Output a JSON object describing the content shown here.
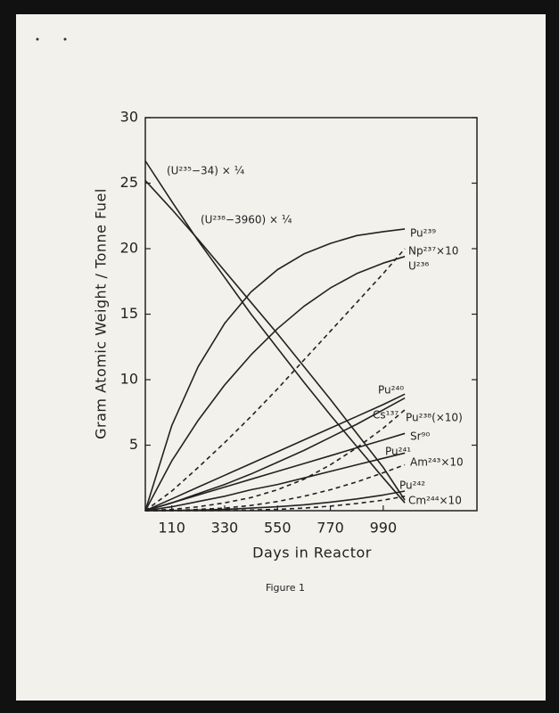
{
  "chart_data": {
    "type": "line",
    "caption": "Figure 1",
    "xlabel": "Days in Reactor",
    "ylabel": "Gram Atomic Weight / Tonne Fuel",
    "x": [
      0,
      110,
      220,
      330,
      440,
      550,
      660,
      770,
      880,
      990,
      1080
    ],
    "xlim": [
      0,
      1380
    ],
    "xticks": [
      110,
      330,
      550,
      770,
      990
    ],
    "ylim": [
      0,
      30
    ],
    "yticks": [
      5,
      10,
      15,
      20,
      25,
      30
    ],
    "grid": false,
    "series": [
      {
        "name": "(U²³⁵−34) × ¼",
        "color": "#222",
        "dash": false,
        "values": [
          26.7,
          23.6,
          20.6,
          17.8,
          15.0,
          12.4,
          9.8,
          7.3,
          4.9,
          2.5,
          0.6
        ]
      },
      {
        "name": "(U²³⁸−3960) × ¼",
        "color": "#222",
        "dash": false,
        "values": [
          25.2,
          23.0,
          20.7,
          18.3,
          15.9,
          13.5,
          11.0,
          8.5,
          5.9,
          3.3,
          0.8
        ]
      },
      {
        "name": "Pu²³⁹",
        "color": "#222",
        "dash": false,
        "values": [
          0,
          6.5,
          11.0,
          14.3,
          16.7,
          18.4,
          19.6,
          20.4,
          21.0,
          21.3,
          21.5
        ]
      },
      {
        "name": "Np²³⁷×10",
        "color": "#222",
        "dash": true,
        "values": [
          0,
          1.5,
          3.3,
          5.2,
          7.2,
          9.3,
          11.5,
          13.7,
          15.9,
          18.1,
          20.0
        ]
      },
      {
        "name": "U²³⁶",
        "color": "#222",
        "dash": false,
        "values": [
          0,
          3.8,
          6.9,
          9.6,
          11.9,
          13.9,
          15.6,
          17.0,
          18.1,
          18.9,
          19.4
        ]
      },
      {
        "name": "Pu²⁴⁰",
        "color": "#222",
        "dash": false,
        "values": [
          0,
          0.6,
          1.3,
          2.0,
          2.8,
          3.7,
          4.6,
          5.6,
          6.6,
          7.7,
          8.6
        ]
      },
      {
        "name": "Cs¹³⁷",
        "color": "#222",
        "dash": false,
        "values": [
          0,
          0.9,
          1.8,
          2.7,
          3.6,
          4.5,
          5.4,
          6.3,
          7.2,
          8.1,
          8.9
        ]
      },
      {
        "name": "Pu²³⁸(×10)",
        "color": "#222",
        "dash": true,
        "values": [
          0,
          0.1,
          0.3,
          0.6,
          1.0,
          1.6,
          2.4,
          3.5,
          4.8,
          6.3,
          7.7
        ]
      },
      {
        "name": "Sr⁹⁰",
        "color": "#222",
        "dash": false,
        "values": [
          0,
          0.6,
          1.2,
          1.8,
          2.4,
          3.0,
          3.6,
          4.2,
          4.8,
          5.4,
          5.9
        ]
      },
      {
        "name": "Pu²⁴¹",
        "color": "#222",
        "dash": false,
        "values": [
          0,
          0.3,
          0.7,
          1.1,
          1.6,
          2.0,
          2.5,
          3.0,
          3.5,
          4.0,
          4.4
        ]
      },
      {
        "name": "Am²⁴³×10",
        "color": "#222",
        "dash": true,
        "values": [
          0,
          0.0,
          0.1,
          0.2,
          0.4,
          0.7,
          1.1,
          1.6,
          2.2,
          2.9,
          3.5
        ]
      },
      {
        "name": "Pu²⁴²",
        "color": "#222",
        "dash": false,
        "values": [
          0,
          0.02,
          0.05,
          0.1,
          0.2,
          0.3,
          0.45,
          0.65,
          0.9,
          1.2,
          1.5
        ]
      },
      {
        "name": "Cm²⁴⁴×10",
        "color": "#222",
        "dash": true,
        "values": [
          0,
          0.0,
          0.0,
          0.02,
          0.05,
          0.1,
          0.2,
          0.35,
          0.55,
          0.8,
          1.1
        ]
      }
    ]
  }
}
